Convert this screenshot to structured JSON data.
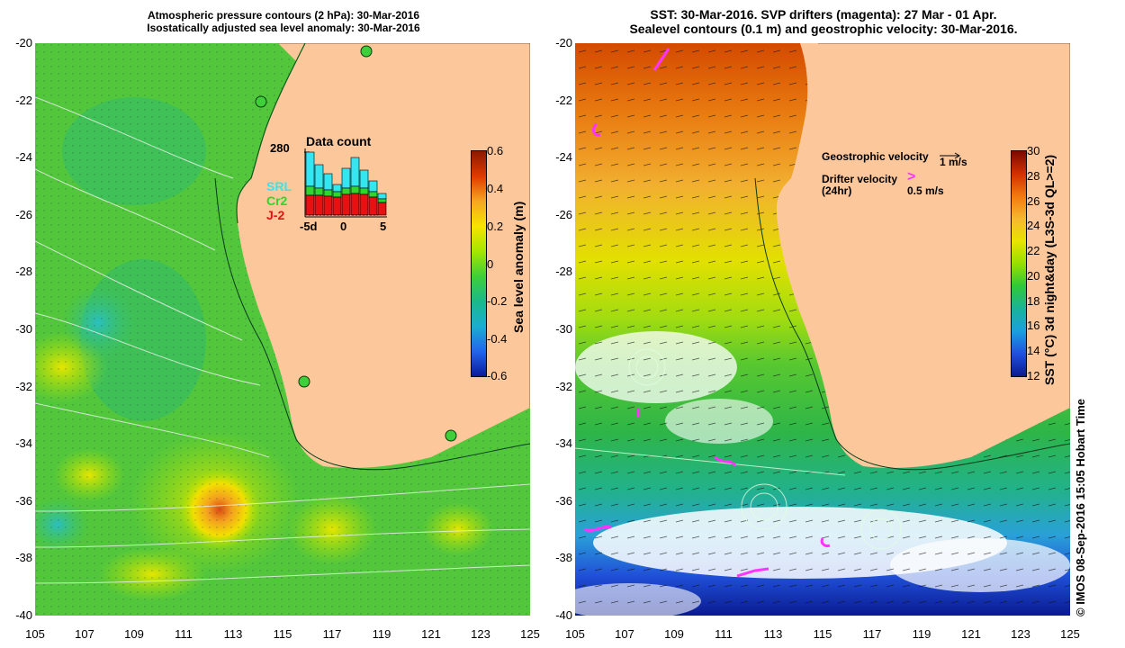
{
  "left_panel": {
    "title_line1": "Atmospheric pressure contours (2 hPa): 30-Mar-2016",
    "title_line2": "Isostatically adjusted sea level anomaly: 30-Mar-2016",
    "colorbar_label": "Sea level anomaly (m)",
    "colorbar_ticks": [
      "0.6",
      "0.4",
      "0.2",
      "0",
      "-0.2",
      "-0.4",
      "-0.6"
    ],
    "colorbar_colors": [
      "#8b1a00",
      "#e03a00",
      "#f5a623",
      "#f7e400",
      "#a5e600",
      "#3fcf3a",
      "#1ab98a",
      "#1aaed0",
      "#2266ee",
      "#0a1a9a"
    ],
    "inset": {
      "title": "Data count",
      "max_count": "280",
      "legend": [
        {
          "label": "SRL",
          "color": "#33e6f0"
        },
        {
          "label": "Cr2",
          "color": "#2ed62e"
        },
        {
          "label": "J-2",
          "color": "#e81010"
        }
      ],
      "x_labels": [
        "-5d",
        "0",
        "5"
      ]
    }
  },
  "right_panel": {
    "title_line1": "SST: 30-Mar-2016. SVP drifters (magenta): 27 Mar - 01 Apr.",
    "title_line2": "Sealevel contours (0.1 m) and geostrophic velocity: 30-Mar-2016.",
    "colorbar_label": "SST (°C) 3d night&day (L3S-3d QL>=2)",
    "colorbar_ticks": [
      "30",
      "28",
      "26",
      "24",
      "22",
      "20",
      "18",
      "16",
      "14",
      "12"
    ],
    "colorbar_colors": [
      "#7a0a00",
      "#d23000",
      "#f27a10",
      "#f6b830",
      "#e8e400",
      "#96e000",
      "#2ec83a",
      "#19b39a",
      "#1aa0e0",
      "#2050e0",
      "#0a1a90"
    ],
    "legend_geo_label": "Geostrophic velocity",
    "legend_geo_scale": "1 m/s",
    "legend_drifter_label": "Drifter velocity",
    "legend_drifter_sub": "(24hr)",
    "legend_drifter_scale": "0.5 m/s"
  },
  "axes": {
    "y_labels": [
      "-20",
      "-22",
      "-24",
      "-26",
      "-28",
      "-30",
      "-32",
      "-34",
      "-36",
      "-38",
      "-40"
    ],
    "x_labels": [
      "105",
      "107",
      "109",
      "111",
      "113",
      "115",
      "117",
      "119",
      "121",
      "123",
      "125"
    ]
  },
  "credit": "© IMOS 08-Sep-2016 15:05 Hobart Time",
  "colors": {
    "land": "#fcc89b",
    "ocean_left": "#57c93c",
    "ocean_right": "#f2a23c"
  }
}
